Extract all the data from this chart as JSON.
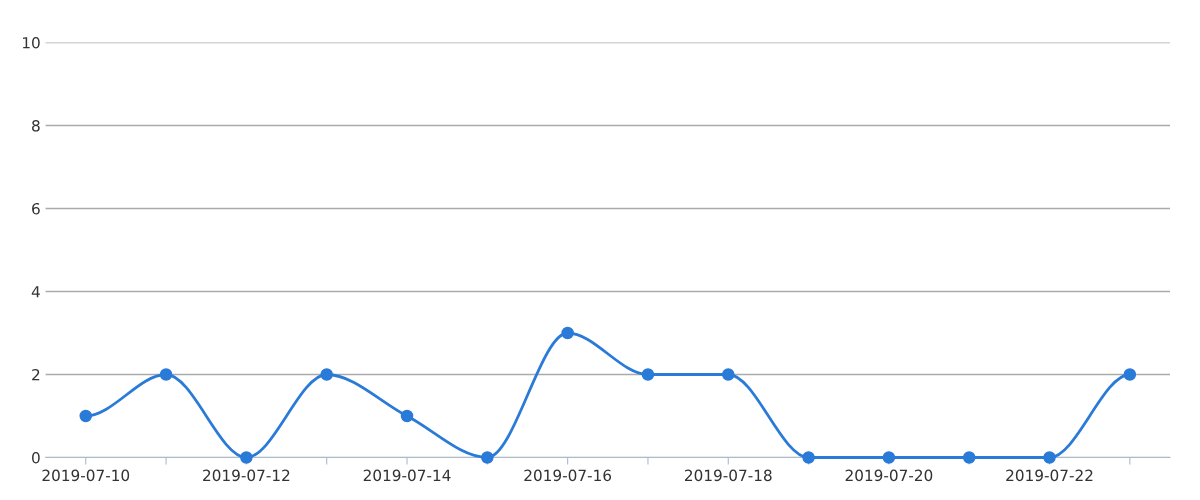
{
  "chart_data": {
    "type": "line",
    "categories": [
      "2019-07-10",
      null,
      "2019-07-12",
      null,
      "2019-07-14",
      null,
      "2019-07-16",
      null,
      "2019-07-18",
      null,
      "2019-07-20",
      null,
      "2019-07-22",
      null
    ],
    "series": [
      {
        "color": "#2a7ad8",
        "values": [
          1,
          2,
          0,
          2,
          1,
          0,
          3,
          2,
          2,
          0,
          0,
          0,
          0,
          2
        ]
      }
    ],
    "ylim": [
      0,
      10
    ],
    "yticks": [
      0,
      2,
      4,
      6,
      8,
      10
    ],
    "grid": "y",
    "marker": "circle",
    "line_style": "solid"
  }
}
